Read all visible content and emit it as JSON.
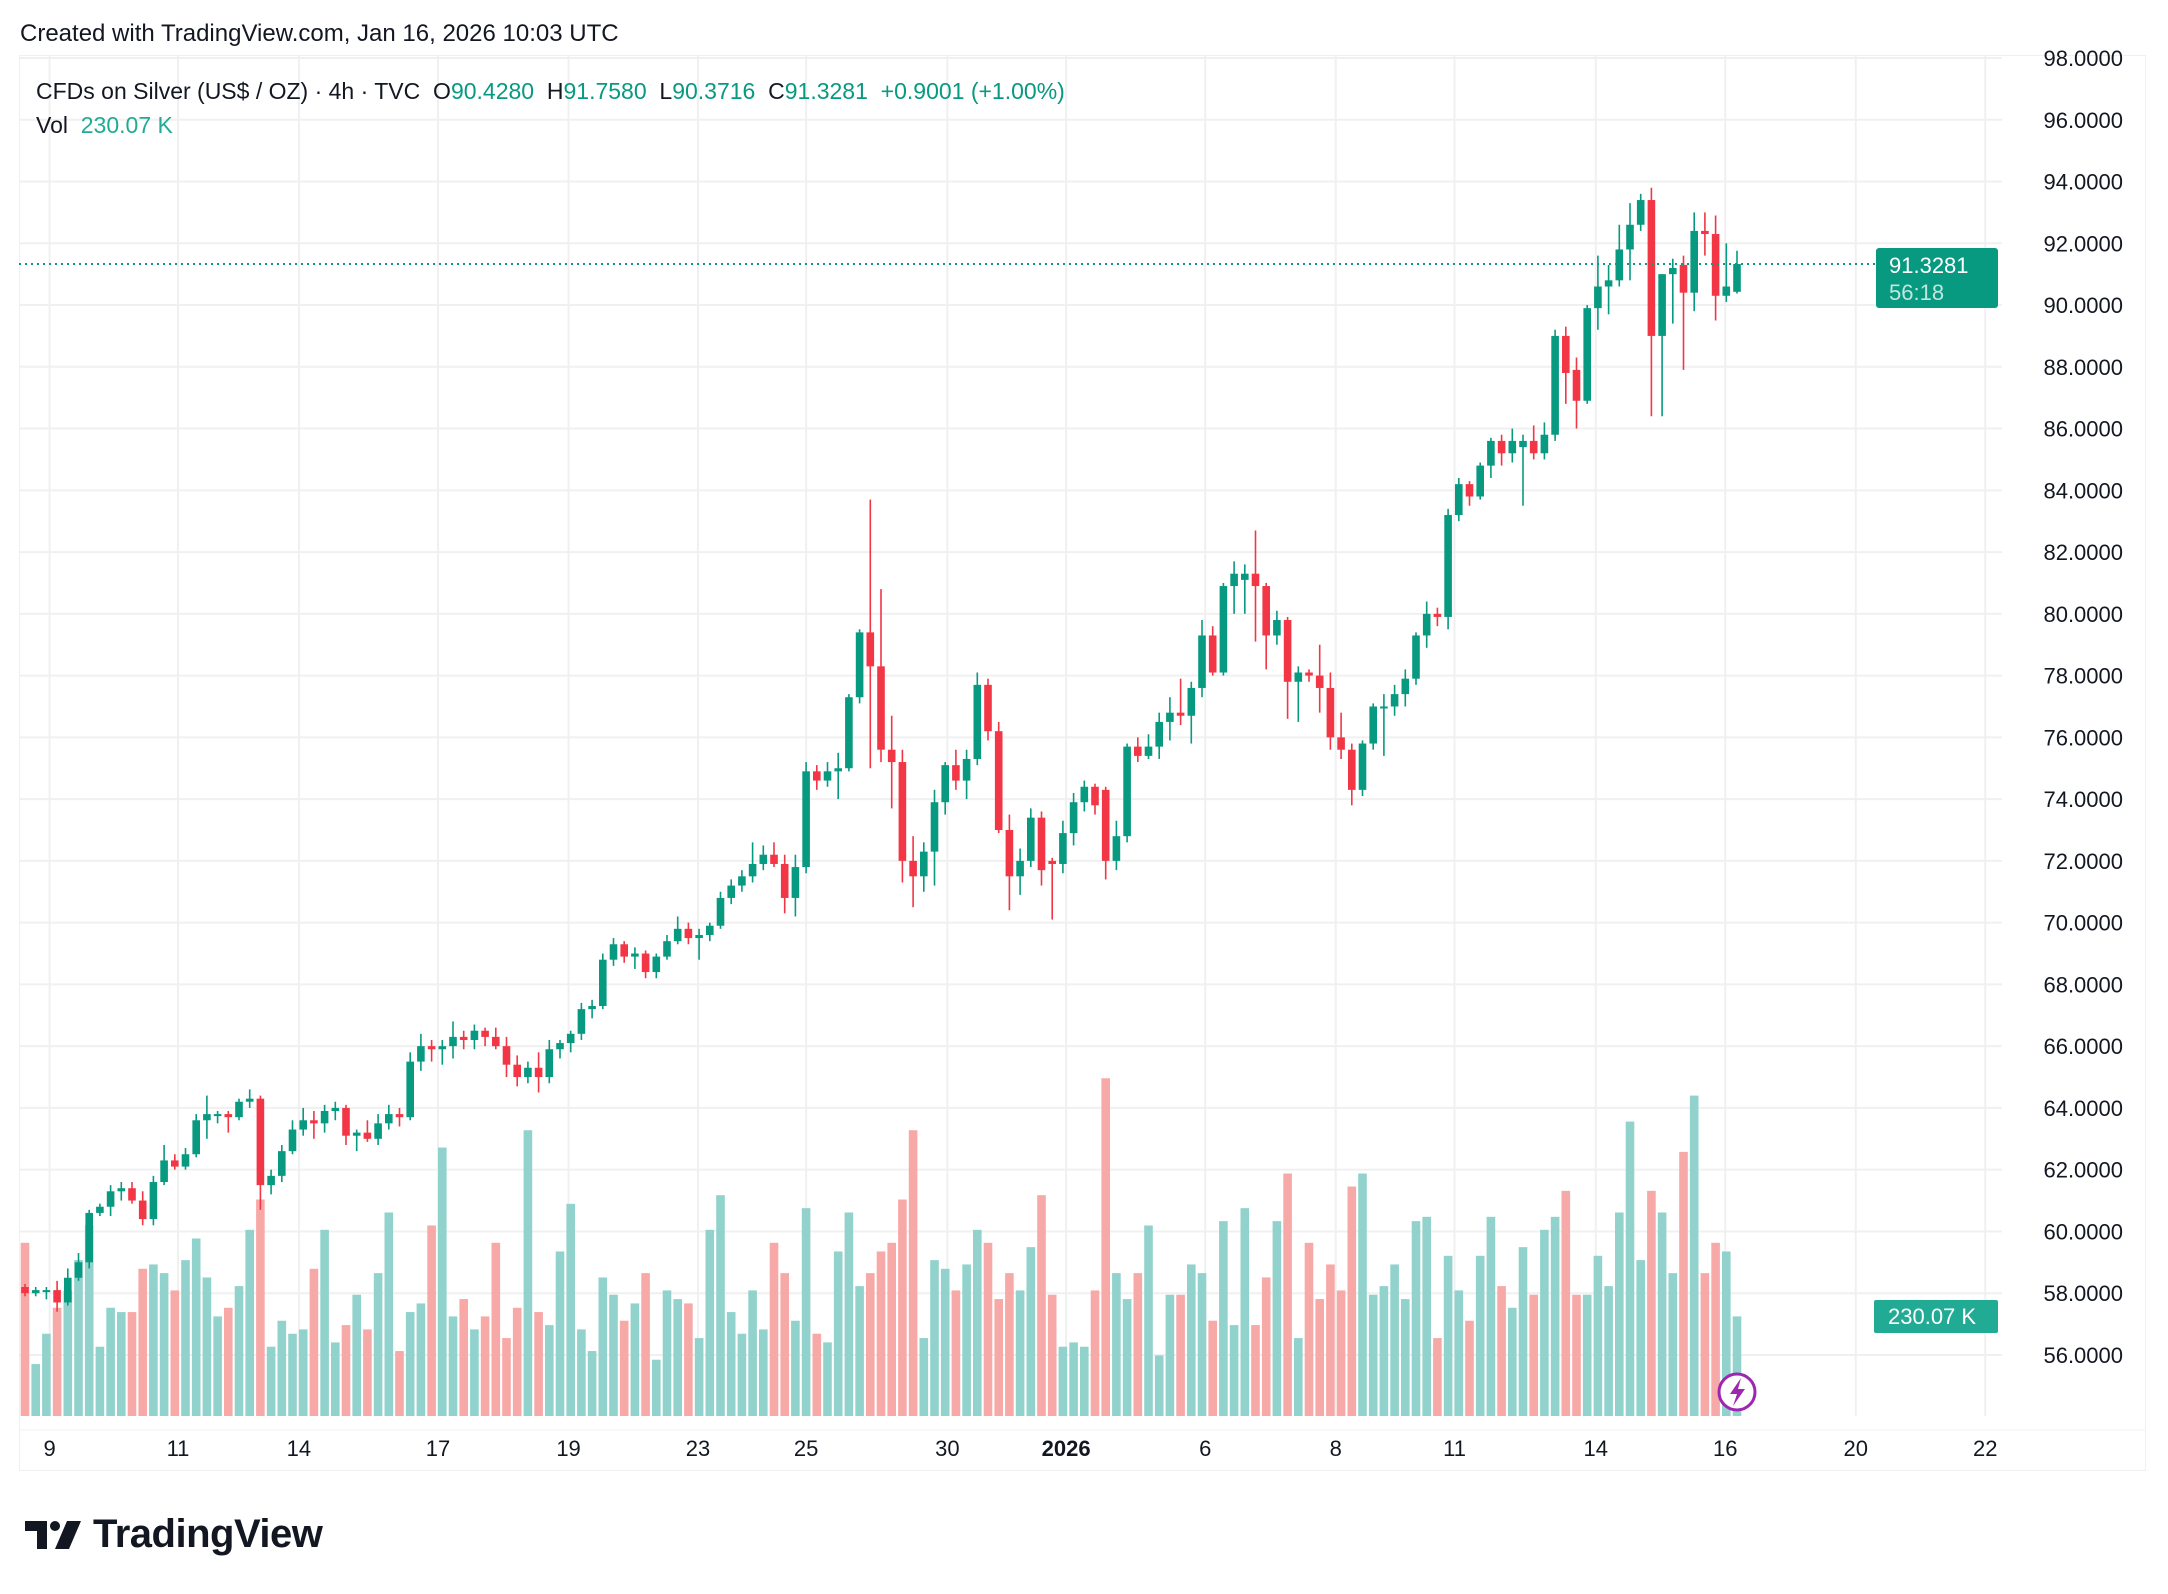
{
  "header": {
    "created": "Created with TradingView.com, Jan 16, 2026 10:03 UTC"
  },
  "legend": {
    "symbol": "CFDs on Silver (US$ / OZ) · 4h · TVC",
    "o_label": "O",
    "o": "90.4280",
    "h_label": "H",
    "h": "91.7580",
    "l_label": "L",
    "l": "90.3716",
    "c_label": "C",
    "c": "91.3281",
    "change": "+0.9001 (+1.00%)",
    "vol_label": "Vol",
    "vol": "230.07 K"
  },
  "price_label": {
    "price": "91.3281",
    "countdown": "56:18"
  },
  "volume_label": "230.07 K",
  "logo": {
    "text": "TradingView"
  },
  "colors": {
    "up": "#089981",
    "down": "#f23645",
    "vol_up": "#92d2cc",
    "vol_down": "#f7a9a7",
    "last_price": "#089981",
    "event_icon": "#9c27b0"
  },
  "icons": {
    "event": "lightning-icon"
  },
  "chart_data": {
    "type": "candlestick",
    "title": "CFDs on Silver (US$ / OZ) · 4h · TVC",
    "ylim": [
      55,
      98
    ],
    "y_ticks": [
      "56.0000",
      "58.0000",
      "60.0000",
      "62.0000",
      "64.0000",
      "66.0000",
      "68.0000",
      "70.0000",
      "72.0000",
      "74.0000",
      "76.0000",
      "78.0000",
      "80.0000",
      "82.0000",
      "84.0000",
      "86.0000",
      "88.0000",
      "90.0000",
      "92.0000",
      "94.0000",
      "96.0000",
      "98.0000"
    ],
    "x_ticks": [
      {
        "label": "9",
        "bold": false
      },
      {
        "label": "11",
        "bold": false
      },
      {
        "label": "14",
        "bold": false
      },
      {
        "label": "17",
        "bold": false
      },
      {
        "label": "19",
        "bold": false
      },
      {
        "label": "23",
        "bold": false
      },
      {
        "label": "25",
        "bold": false
      },
      {
        "label": "30",
        "bold": false
      },
      {
        "label": "2026",
        "bold": true
      },
      {
        "label": "6",
        "bold": false
      },
      {
        "label": "8",
        "bold": false
      },
      {
        "label": "11",
        "bold": false
      },
      {
        "label": "14",
        "bold": false
      },
      {
        "label": "16",
        "bold": false
      },
      {
        "label": "20",
        "bold": false
      },
      {
        "label": "22",
        "bold": false
      }
    ],
    "grid": true,
    "last_price": 91.3281,
    "volume_unit": "K",
    "candles_ohlcv": [
      [
        58.2,
        58.3,
        57.9,
        58.0,
        400
      ],
      [
        58.0,
        58.2,
        57.9,
        58.1,
        120
      ],
      [
        58.1,
        58.2,
        57.8,
        58.1,
        190
      ],
      [
        58.1,
        58.4,
        57.4,
        57.7,
        250
      ],
      [
        57.7,
        58.8,
        57.6,
        58.5,
        290
      ],
      [
        58.5,
        59.3,
        58.4,
        59.0,
        360
      ],
      [
        59.0,
        60.7,
        58.8,
        60.6,
        440
      ],
      [
        60.6,
        60.9,
        60.5,
        60.8,
        160
      ],
      [
        60.8,
        61.5,
        60.5,
        61.3,
        250
      ],
      [
        61.3,
        61.6,
        61.0,
        61.4,
        240
      ],
      [
        61.4,
        61.6,
        60.9,
        61.0,
        240
      ],
      [
        61.0,
        61.3,
        60.2,
        60.4,
        340
      ],
      [
        60.4,
        61.8,
        60.2,
        61.6,
        350
      ],
      [
        61.6,
        62.8,
        61.5,
        62.3,
        330
      ],
      [
        62.3,
        62.5,
        62.0,
        62.1,
        290
      ],
      [
        62.1,
        62.7,
        62.0,
        62.5,
        360
      ],
      [
        62.5,
        63.8,
        62.4,
        63.6,
        410
      ],
      [
        63.6,
        64.4,
        63.0,
        63.8,
        320
      ],
      [
        63.8,
        63.9,
        63.5,
        63.8,
        230
      ],
      [
        63.8,
        63.9,
        63.2,
        63.7,
        250
      ],
      [
        63.7,
        64.3,
        63.6,
        64.2,
        300
      ],
      [
        64.2,
        64.6,
        64.0,
        64.3,
        430
      ],
      [
        64.3,
        64.4,
        60.7,
        61.5,
        500
      ],
      [
        61.5,
        62.0,
        61.2,
        61.8,
        160
      ],
      [
        61.8,
        62.8,
        61.6,
        62.6,
        220
      ],
      [
        62.6,
        63.6,
        62.5,
        63.3,
        190
      ],
      [
        63.3,
        64.0,
        63.1,
        63.6,
        200
      ],
      [
        63.6,
        63.9,
        63.0,
        63.5,
        340
      ],
      [
        63.5,
        64.1,
        63.2,
        63.9,
        430
      ],
      [
        63.9,
        64.2,
        63.6,
        64.0,
        170
      ],
      [
        64.0,
        64.1,
        62.8,
        63.1,
        210
      ],
      [
        63.1,
        63.3,
        62.6,
        63.2,
        280
      ],
      [
        63.2,
        63.6,
        62.9,
        63.0,
        200
      ],
      [
        63.0,
        63.8,
        62.8,
        63.5,
        330
      ],
      [
        63.5,
        64.1,
        63.3,
        63.8,
        470
      ],
      [
        63.8,
        64.0,
        63.4,
        63.7,
        150
      ],
      [
        63.7,
        65.8,
        63.6,
        65.5,
        240
      ],
      [
        65.5,
        66.4,
        65.2,
        66.0,
        260
      ],
      [
        66.0,
        66.2,
        65.5,
        65.9,
        440
      ],
      [
        65.9,
        66.2,
        65.4,
        66.0,
        620
      ],
      [
        66.0,
        66.8,
        65.6,
        66.3,
        230
      ],
      [
        66.3,
        66.5,
        65.9,
        66.2,
        270
      ],
      [
        66.2,
        66.7,
        65.9,
        66.5,
        200
      ],
      [
        66.5,
        66.6,
        66.0,
        66.3,
        230
      ],
      [
        66.3,
        66.6,
        65.9,
        66.0,
        400
      ],
      [
        66.0,
        66.3,
        65.0,
        65.4,
        180
      ],
      [
        65.4,
        65.7,
        64.7,
        65.0,
        250
      ],
      [
        65.0,
        65.5,
        64.8,
        65.3,
        660
      ],
      [
        65.3,
        65.8,
        64.5,
        65.0,
        240
      ],
      [
        65.0,
        66.2,
        64.8,
        65.9,
        210
      ],
      [
        65.9,
        66.2,
        65.6,
        66.1,
        380
      ],
      [
        66.1,
        66.5,
        65.8,
        66.4,
        490
      ],
      [
        66.4,
        67.4,
        66.2,
        67.2,
        200
      ],
      [
        67.2,
        67.5,
        66.9,
        67.3,
        150
      ],
      [
        67.3,
        69.0,
        67.2,
        68.8,
        320
      ],
      [
        68.8,
        69.5,
        68.6,
        69.3,
        280
      ],
      [
        69.3,
        69.4,
        68.7,
        68.9,
        220
      ],
      [
        68.9,
        69.2,
        68.5,
        69.0,
        260
      ],
      [
        69.0,
        69.1,
        68.2,
        68.4,
        330
      ],
      [
        68.4,
        69.0,
        68.2,
        68.9,
        130
      ],
      [
        68.9,
        69.6,
        68.8,
        69.4,
        290
      ],
      [
        69.4,
        70.2,
        69.3,
        69.8,
        270
      ],
      [
        69.8,
        70.0,
        69.3,
        69.5,
        260
      ],
      [
        69.5,
        69.8,
        68.8,
        69.6,
        180
      ],
      [
        69.6,
        70.0,
        69.4,
        69.9,
        430
      ],
      [
        69.9,
        71.0,
        69.8,
        70.8,
        510
      ],
      [
        70.8,
        71.4,
        70.6,
        71.2,
        240
      ],
      [
        71.2,
        71.7,
        71.0,
        71.5,
        190
      ],
      [
        71.5,
        72.6,
        71.3,
        71.9,
        290
      ],
      [
        71.9,
        72.5,
        71.7,
        72.2,
        200
      ],
      [
        72.2,
        72.6,
        71.8,
        71.9,
        400
      ],
      [
        71.9,
        72.2,
        70.3,
        70.8,
        330
      ],
      [
        70.8,
        72.2,
        70.2,
        71.8,
        220
      ],
      [
        71.8,
        75.2,
        71.6,
        74.9,
        480
      ],
      [
        74.9,
        75.1,
        74.3,
        74.6,
        190
      ],
      [
        74.6,
        75.2,
        74.4,
        74.9,
        170
      ],
      [
        74.9,
        75.5,
        74.0,
        75.0,
        380
      ],
      [
        75.0,
        77.4,
        74.9,
        77.3,
        470
      ],
      [
        77.3,
        79.5,
        77.1,
        79.4,
        300
      ],
      [
        79.4,
        83.7,
        75.0,
        78.3,
        330
      ],
      [
        78.3,
        80.8,
        75.2,
        75.6,
        380
      ],
      [
        75.6,
        76.7,
        73.7,
        75.2,
        400
      ],
      [
        75.2,
        75.6,
        71.3,
        72.0,
        500
      ],
      [
        72.0,
        72.8,
        70.5,
        71.5,
        660
      ],
      [
        71.5,
        72.6,
        71.0,
        72.3,
        180
      ],
      [
        72.3,
        74.3,
        71.2,
        73.9,
        360
      ],
      [
        73.9,
        75.2,
        73.5,
        75.1,
        340
      ],
      [
        75.1,
        75.6,
        74.3,
        74.6,
        290
      ],
      [
        74.6,
        75.6,
        74.0,
        75.3,
        350
      ],
      [
        75.3,
        78.1,
        75.1,
        77.7,
        430
      ],
      [
        77.7,
        77.9,
        75.9,
        76.2,
        400
      ],
      [
        76.2,
        76.5,
        72.9,
        73.0,
        270
      ],
      [
        73.0,
        73.5,
        70.4,
        71.5,
        330
      ],
      [
        71.5,
        72.4,
        70.9,
        72.0,
        290
      ],
      [
        72.0,
        73.7,
        71.8,
        73.4,
        390
      ],
      [
        73.4,
        73.6,
        71.2,
        71.7,
        510
      ],
      [
        72.0,
        72.1,
        70.1,
        71.9,
        280
      ],
      [
        71.9,
        73.3,
        71.6,
        72.9,
        160
      ],
      [
        72.9,
        74.2,
        72.5,
        73.9,
        170
      ],
      [
        73.9,
        74.6,
        73.6,
        74.4,
        160
      ],
      [
        74.4,
        74.5,
        73.5,
        73.8,
        290
      ],
      [
        74.3,
        74.4,
        71.4,
        72.0,
        780
      ],
      [
        72.0,
        73.3,
        71.7,
        72.8,
        330
      ],
      [
        72.8,
        75.8,
        72.6,
        75.7,
        270
      ],
      [
        75.7,
        76.0,
        75.2,
        75.4,
        330
      ],
      [
        75.4,
        76.1,
        75.3,
        75.7,
        440
      ],
      [
        75.7,
        76.8,
        75.3,
        76.5,
        140
      ],
      [
        76.5,
        77.3,
        75.9,
        76.8,
        280
      ],
      [
        76.8,
        77.9,
        76.4,
        76.7,
        280
      ],
      [
        76.7,
        77.8,
        75.8,
        77.6,
        350
      ],
      [
        77.6,
        79.8,
        77.3,
        79.3,
        330
      ],
      [
        79.3,
        79.6,
        78.0,
        78.1,
        220
      ],
      [
        78.1,
        81.0,
        78.0,
        80.9,
        450
      ],
      [
        80.9,
        81.7,
        80.0,
        81.3,
        210
      ],
      [
        81.1,
        81.6,
        80.0,
        81.3,
        480
      ],
      [
        81.3,
        82.7,
        79.1,
        80.9,
        210
      ],
      [
        80.9,
        81.0,
        78.2,
        79.3,
        320
      ],
      [
        79.3,
        80.1,
        79.0,
        79.8,
        450
      ],
      [
        79.8,
        79.9,
        76.6,
        77.8,
        560
      ],
      [
        77.8,
        78.3,
        76.5,
        78.1,
        180
      ],
      [
        78.1,
        78.2,
        77.8,
        78.0,
        400
      ],
      [
        78.0,
        79.0,
        76.8,
        77.6,
        270
      ],
      [
        77.6,
        78.1,
        75.6,
        76.0,
        350
      ],
      [
        76.0,
        76.8,
        75.3,
        75.6,
        290
      ],
      [
        75.6,
        75.8,
        73.8,
        74.3,
        530
      ],
      [
        74.3,
        75.9,
        74.1,
        75.8,
        560
      ],
      [
        75.8,
        77.1,
        75.6,
        77.0,
        280
      ],
      [
        77.0,
        77.4,
        75.4,
        77.0,
        300
      ],
      [
        77.0,
        77.7,
        76.7,
        77.4,
        350
      ],
      [
        77.4,
        78.2,
        77.0,
        77.9,
        270
      ],
      [
        77.9,
        79.4,
        77.7,
        79.3,
        450
      ],
      [
        79.3,
        80.4,
        78.9,
        80.0,
        460
      ],
      [
        80.0,
        80.2,
        79.6,
        79.9,
        180
      ],
      [
        79.9,
        83.4,
        79.5,
        83.2,
        370
      ],
      [
        83.2,
        84.4,
        83.0,
        84.2,
        290
      ],
      [
        84.2,
        84.3,
        83.5,
        83.8,
        220
      ],
      [
        83.8,
        84.9,
        83.7,
        84.8,
        370
      ],
      [
        84.8,
        85.7,
        84.4,
        85.6,
        460
      ],
      [
        85.6,
        85.8,
        84.8,
        85.2,
        300
      ],
      [
        85.2,
        86.0,
        84.9,
        85.6,
        250
      ],
      [
        85.4,
        85.8,
        83.5,
        85.6,
        390
      ],
      [
        85.6,
        86.1,
        85.0,
        85.2,
        280
      ],
      [
        85.2,
        86.2,
        85.0,
        85.8,
        430
      ],
      [
        85.8,
        89.2,
        85.6,
        89.0,
        460
      ],
      [
        89.0,
        89.3,
        86.8,
        87.8,
        520
      ],
      [
        87.9,
        88.3,
        86.0,
        86.9,
        280
      ],
      [
        86.9,
        90.0,
        86.8,
        89.9,
        280
      ],
      [
        89.9,
        91.6,
        89.2,
        90.6,
        370
      ],
      [
        90.6,
        91.3,
        89.7,
        90.8,
        300
      ],
      [
        90.8,
        92.6,
        90.6,
        91.8,
        470
      ],
      [
        91.8,
        93.3,
        90.8,
        92.6,
        680
      ],
      [
        92.6,
        93.6,
        92.4,
        93.4,
        360
      ],
      [
        93.4,
        93.8,
        86.4,
        89.0,
        520
      ],
      [
        89.0,
        91.0,
        86.4,
        91.0,
        470
      ],
      [
        91.0,
        91.5,
        89.4,
        91.2,
        330
      ],
      [
        91.3,
        91.6,
        87.9,
        90.4,
        610
      ],
      [
        90.4,
        93.0,
        89.8,
        92.4,
        740
      ],
      [
        92.4,
        93.0,
        91.6,
        92.3,
        330
      ],
      [
        92.3,
        92.9,
        89.5,
        90.3,
        400
      ],
      [
        90.3,
        92.0,
        90.1,
        90.6,
        380
      ],
      [
        90.428,
        91.758,
        90.3716,
        91.3281,
        230.07
      ]
    ]
  }
}
